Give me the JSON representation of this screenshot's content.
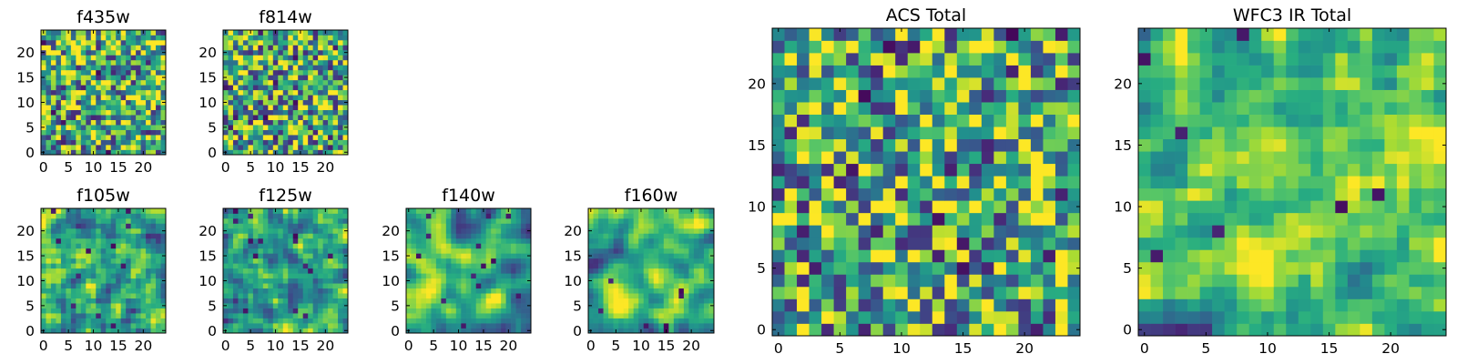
{
  "chart_data": [
    {
      "type": "heatmap",
      "title": "f435w",
      "grid_size": 25,
      "xlim": [
        -0.5,
        24.5
      ],
      "ylim": [
        -0.5,
        24.5
      ],
      "xticks": [
        0,
        5,
        10,
        15,
        20
      ],
      "yticks": [
        0,
        5,
        10,
        15,
        20
      ],
      "colormap": "viridis",
      "seed": 11,
      "smoothing": 0,
      "bias": 0.0
    },
    {
      "type": "heatmap",
      "title": "f814w",
      "grid_size": 25,
      "xlim": [
        -0.5,
        24.5
      ],
      "ylim": [
        -0.5,
        24.5
      ],
      "xticks": [
        0,
        5,
        10,
        15,
        20
      ],
      "yticks": [
        0,
        5,
        10,
        15,
        20
      ],
      "colormap": "viridis",
      "seed": 23,
      "smoothing": 0,
      "bias": 0.02
    },
    {
      "type": "heatmap",
      "title": "f105w",
      "grid_size": 25,
      "xlim": [
        -0.5,
        24.5
      ],
      "ylim": [
        -0.5,
        24.5
      ],
      "xticks": [
        0,
        5,
        10,
        15,
        20
      ],
      "yticks": [
        0,
        5,
        10,
        15,
        20
      ],
      "colormap": "viridis",
      "seed": 37,
      "smoothing": 1,
      "bias": 0.05
    },
    {
      "type": "heatmap",
      "title": "f125w",
      "grid_size": 25,
      "xlim": [
        -0.5,
        24.5
      ],
      "ylim": [
        -0.5,
        24.5
      ],
      "xticks": [
        0,
        5,
        10,
        15,
        20
      ],
      "yticks": [
        0,
        5,
        10,
        15,
        20
      ],
      "colormap": "viridis",
      "seed": 41,
      "smoothing": 1,
      "bias": 0.05
    },
    {
      "type": "heatmap",
      "title": "f140w",
      "grid_size": 25,
      "xlim": [
        -0.5,
        24.5
      ],
      "ylim": [
        -0.5,
        24.5
      ],
      "xticks": [
        0,
        5,
        10,
        15,
        20
      ],
      "yticks": [
        0,
        5,
        10,
        15,
        20
      ],
      "colormap": "viridis",
      "seed": 53,
      "smoothing": 2,
      "bias": 0.0
    },
    {
      "type": "heatmap",
      "title": "f160w",
      "grid_size": 25,
      "xlim": [
        -0.5,
        24.5
      ],
      "ylim": [
        -0.5,
        24.5
      ],
      "xticks": [
        0,
        5,
        10,
        15,
        20
      ],
      "yticks": [
        0,
        5,
        10,
        15,
        20
      ],
      "colormap": "viridis",
      "seed": 67,
      "smoothing": 2,
      "bias": 0.0
    },
    {
      "type": "heatmap",
      "title": "ACS Total",
      "grid_size": 25,
      "xlim": [
        -0.5,
        24.5
      ],
      "ylim": [
        -0.5,
        24.5
      ],
      "xticks": [
        0,
        5,
        10,
        15,
        20
      ],
      "yticks": [
        0,
        5,
        10,
        15,
        20
      ],
      "colormap": "viridis",
      "seed": 79,
      "smoothing": 0,
      "bias": 0.12
    },
    {
      "type": "heatmap",
      "title": "WFC3 IR Total",
      "grid_size": 25,
      "xlim": [
        -0.5,
        24.5
      ],
      "ylim": [
        -0.5,
        24.5
      ],
      "xticks": [
        0,
        5,
        10,
        15,
        20
      ],
      "yticks": [
        0,
        5,
        10,
        15,
        20
      ],
      "colormap": "viridis",
      "seed": 97,
      "smoothing": 1,
      "bias": 0.12
    }
  ]
}
